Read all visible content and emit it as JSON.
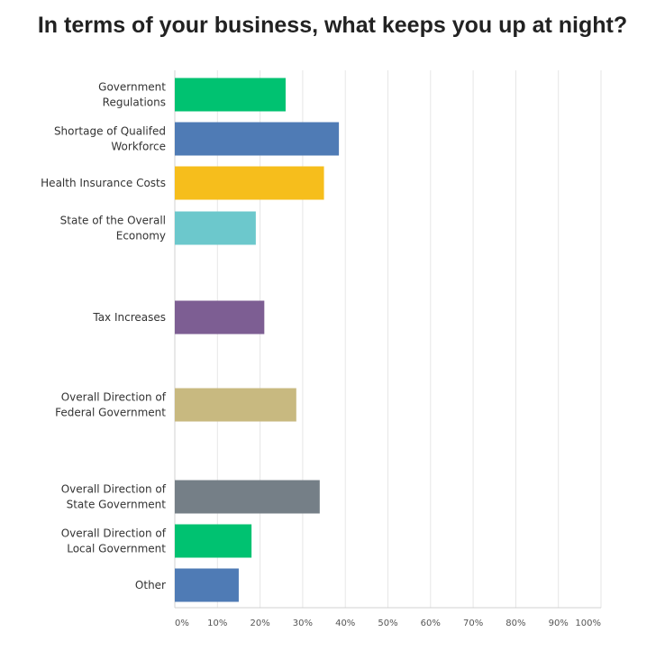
{
  "chart_data": {
    "type": "bar",
    "orientation": "horizontal",
    "title": "In terms of your business, what keeps you up at night?",
    "categories": [
      [
        "Government",
        "Regulations"
      ],
      [
        "Shortage of Qualifed",
        "Workforce"
      ],
      [
        "Health Insurance Costs"
      ],
      [
        "State of the Overall",
        "Economy"
      ],
      [
        "Tax Increases"
      ],
      [
        "Overall Direction of",
        "Federal Government"
      ],
      [
        "Overall Direction of",
        "State Government"
      ],
      [
        "Overall Direction of",
        "Local Government"
      ],
      [
        "Other"
      ]
    ],
    "values": [
      26,
      38.5,
      35,
      19,
      21,
      28.5,
      34,
      18,
      15
    ],
    "colors": [
      "#00c271",
      "#4f7bb5",
      "#f6be1c",
      "#6cc8cc",
      "#7d5e93",
      "#c8b980",
      "#757f87",
      "#00c271",
      "#4f7bb5"
    ],
    "xlim": [
      0,
      100
    ],
    "x_ticks": [
      "0%",
      "10%",
      "20%",
      "30%",
      "40%",
      "50%",
      "60%",
      "70%",
      "80%",
      "90%",
      "100%"
    ],
    "grid": true,
    "legend": "none"
  }
}
